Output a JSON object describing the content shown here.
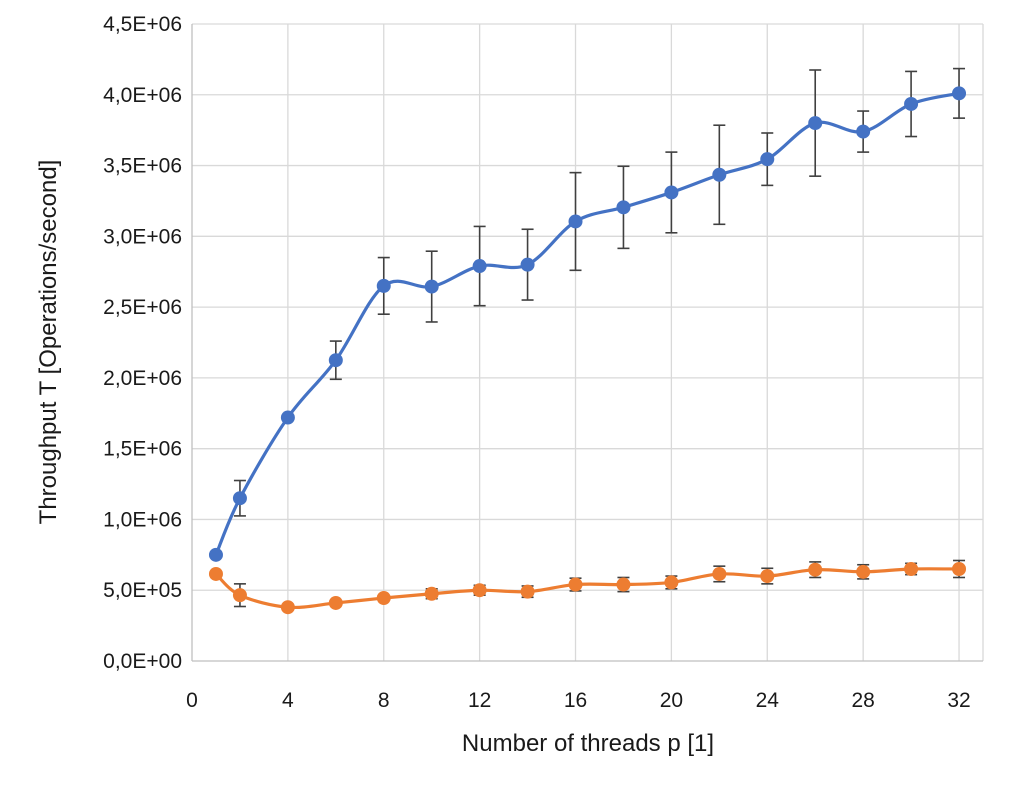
{
  "chart_data": {
    "type": "line",
    "title": "",
    "xlabel": "Number of threads p [1]",
    "ylabel": "Throughput T [Operations/second]",
    "xlim": [
      0,
      33
    ],
    "ylim": [
      0,
      4500000
    ],
    "x_ticks": [
      0,
      4,
      8,
      12,
      16,
      20,
      24,
      28,
      32
    ],
    "x_tick_labels": [
      "0",
      "4",
      "8",
      "12",
      "16",
      "20",
      "24",
      "28",
      "32"
    ],
    "y_ticks": [
      0,
      500000,
      1000000,
      1500000,
      2000000,
      2500000,
      3000000,
      3500000,
      4000000,
      4500000
    ],
    "y_tick_labels": [
      "0,0E+00",
      "5,0E+05",
      "1,0E+06",
      "1,5E+06",
      "2,0E+06",
      "2,5E+06",
      "3,0E+06",
      "3,5E+06",
      "4,0E+06",
      "4,5E+06"
    ],
    "grid": true,
    "legend": "none",
    "x": [
      1,
      2,
      4,
      6,
      8,
      10,
      12,
      14,
      16,
      18,
      20,
      22,
      24,
      26,
      28,
      30,
      32
    ],
    "series": [
      {
        "color": "#4472c4",
        "values": [
          750000,
          1150000,
          1720000,
          2125000,
          2650000,
          2645000,
          2790000,
          2800000,
          3105000,
          3205000,
          3310000,
          3435000,
          3545000,
          3800000,
          3740000,
          3935000,
          4010000
        ],
        "error": [
          null,
          125000,
          null,
          135000,
          200000,
          250000,
          280000,
          250000,
          345000,
          290000,
          285000,
          350000,
          185000,
          375000,
          145000,
          230000,
          175000
        ]
      },
      {
        "color": "#ed7d31",
        "values": [
          615000,
          465000,
          380000,
          410000,
          445000,
          475000,
          500000,
          490000,
          540000,
          540000,
          555000,
          615000,
          600000,
          645000,
          630000,
          650000,
          650000
        ],
        "error": [
          null,
          80000,
          null,
          null,
          null,
          35000,
          35000,
          40000,
          45000,
          50000,
          45000,
          55000,
          55000,
          55000,
          50000,
          40000,
          60000
        ]
      }
    ]
  }
}
